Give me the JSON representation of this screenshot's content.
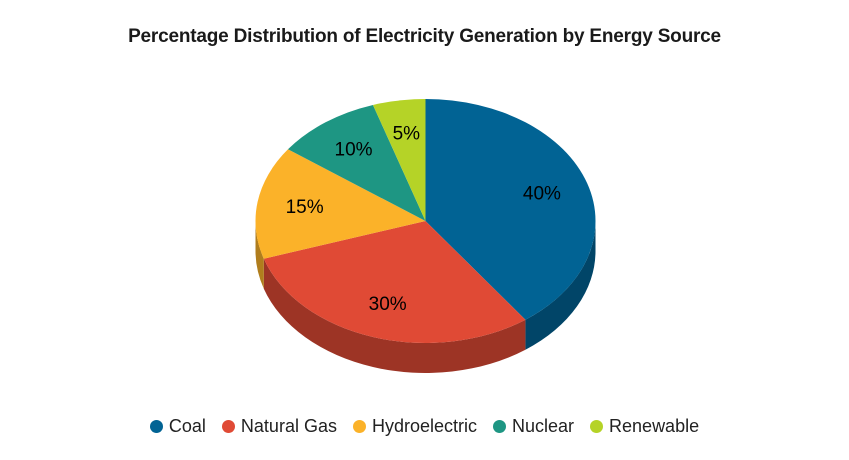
{
  "chart_data": {
    "type": "pie",
    "is3d": true,
    "title": "Percentage Distribution of Electricity Generation by Energy Source",
    "categories": [
      "Coal",
      "Natural Gas",
      "Hydroelectric",
      "Nuclear",
      "Renewable"
    ],
    "values": [
      40,
      30,
      15,
      10,
      5
    ],
    "slice_labels": [
      "40%",
      "30%",
      "15%",
      "10%",
      "5%"
    ],
    "colors": [
      "#016394",
      "#e04a35",
      "#fbb229",
      "#1e9683",
      "#b5d327"
    ],
    "slice_label_color": "#000000",
    "title_color": "#1a1a1a",
    "legend_position": "bottom",
    "legend_text_color": "#222222",
    "background_color": "#ffffff"
  }
}
